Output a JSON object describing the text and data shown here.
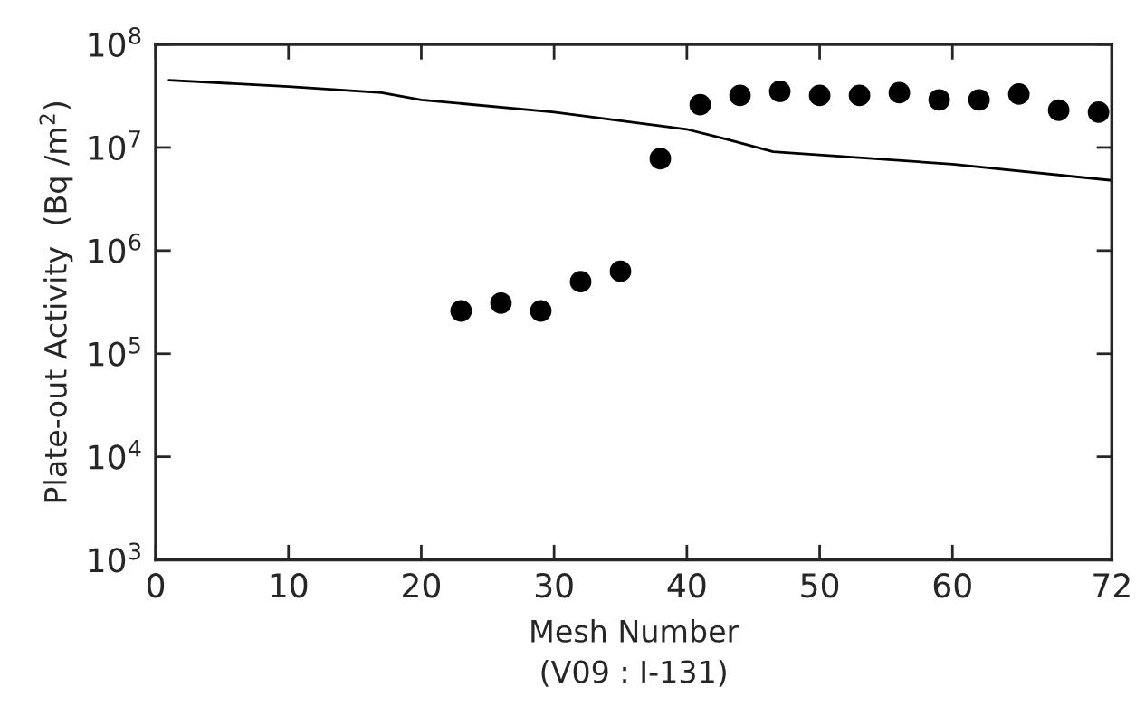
{
  "chart_data": {
    "type": "scatter",
    "xlabel": "Mesh Number\n(V09 : I-131)",
    "ylabel": "Plate-out Activity  (Bq /m$^{2}$)",
    "log": "y",
    "xlim": [
      0,
      72
    ],
    "xticks": [
      0,
      10,
      20,
      30,
      40,
      50,
      60,
      72
    ],
    "ylim": [
      1000,
      100000000
    ],
    "yticks": [
      {
        "value": 1000,
        "label": "10$^{3}$"
      },
      {
        "value": 10000,
        "label": "10$^{4}$"
      },
      {
        "value": 100000,
        "label": "10$^{5}$"
      },
      {
        "value": 1000000,
        "label": "10$^{6}$"
      },
      {
        "value": 10000000,
        "label": "10$^{7}$"
      },
      {
        "value": 100000000,
        "label": "10$^{8}$"
      }
    ],
    "series": [
      {
        "type": "line",
        "color": "#000000",
        "x": [
          1,
          10,
          17,
          20,
          30,
          40,
          43,
          46.5,
          60,
          72
        ],
        "values": [
          45000000,
          39000000,
          34000000,
          29000000,
          22000000,
          15000000,
          12000000,
          9100000,
          6900000,
          4800000
        ]
      },
      {
        "color": "#000000",
        "marker": "circle",
        "x": [
          23,
          26,
          29,
          32,
          35,
          38,
          41,
          44,
          47,
          50,
          53,
          56,
          59,
          62,
          65,
          68,
          71
        ],
        "values": [
          260000,
          310000,
          260000,
          500000,
          630000,
          7800000,
          26000000,
          32000000,
          35000000,
          32000000,
          32000000,
          34000000,
          29000000,
          29000000,
          33000000,
          23000000,
          22000000
        ]
      }
    ]
  }
}
